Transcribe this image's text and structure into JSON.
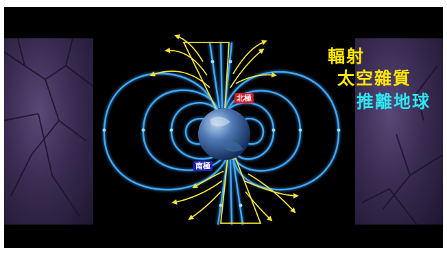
{
  "labels": {
    "north_pole": "北極",
    "south_pole": "南極"
  },
  "caption": {
    "line1": "輻射",
    "line2": "太空雜質",
    "line3": "推離地球"
  },
  "colors": {
    "field_lines": "#3fa9ff",
    "radiation_arrows": "#f2e23a",
    "caption_yellow": "#ffe800",
    "caption_cyan": "#2ee6f0",
    "north_badge": "#d21a26",
    "south_badge": "#2222b8"
  }
}
